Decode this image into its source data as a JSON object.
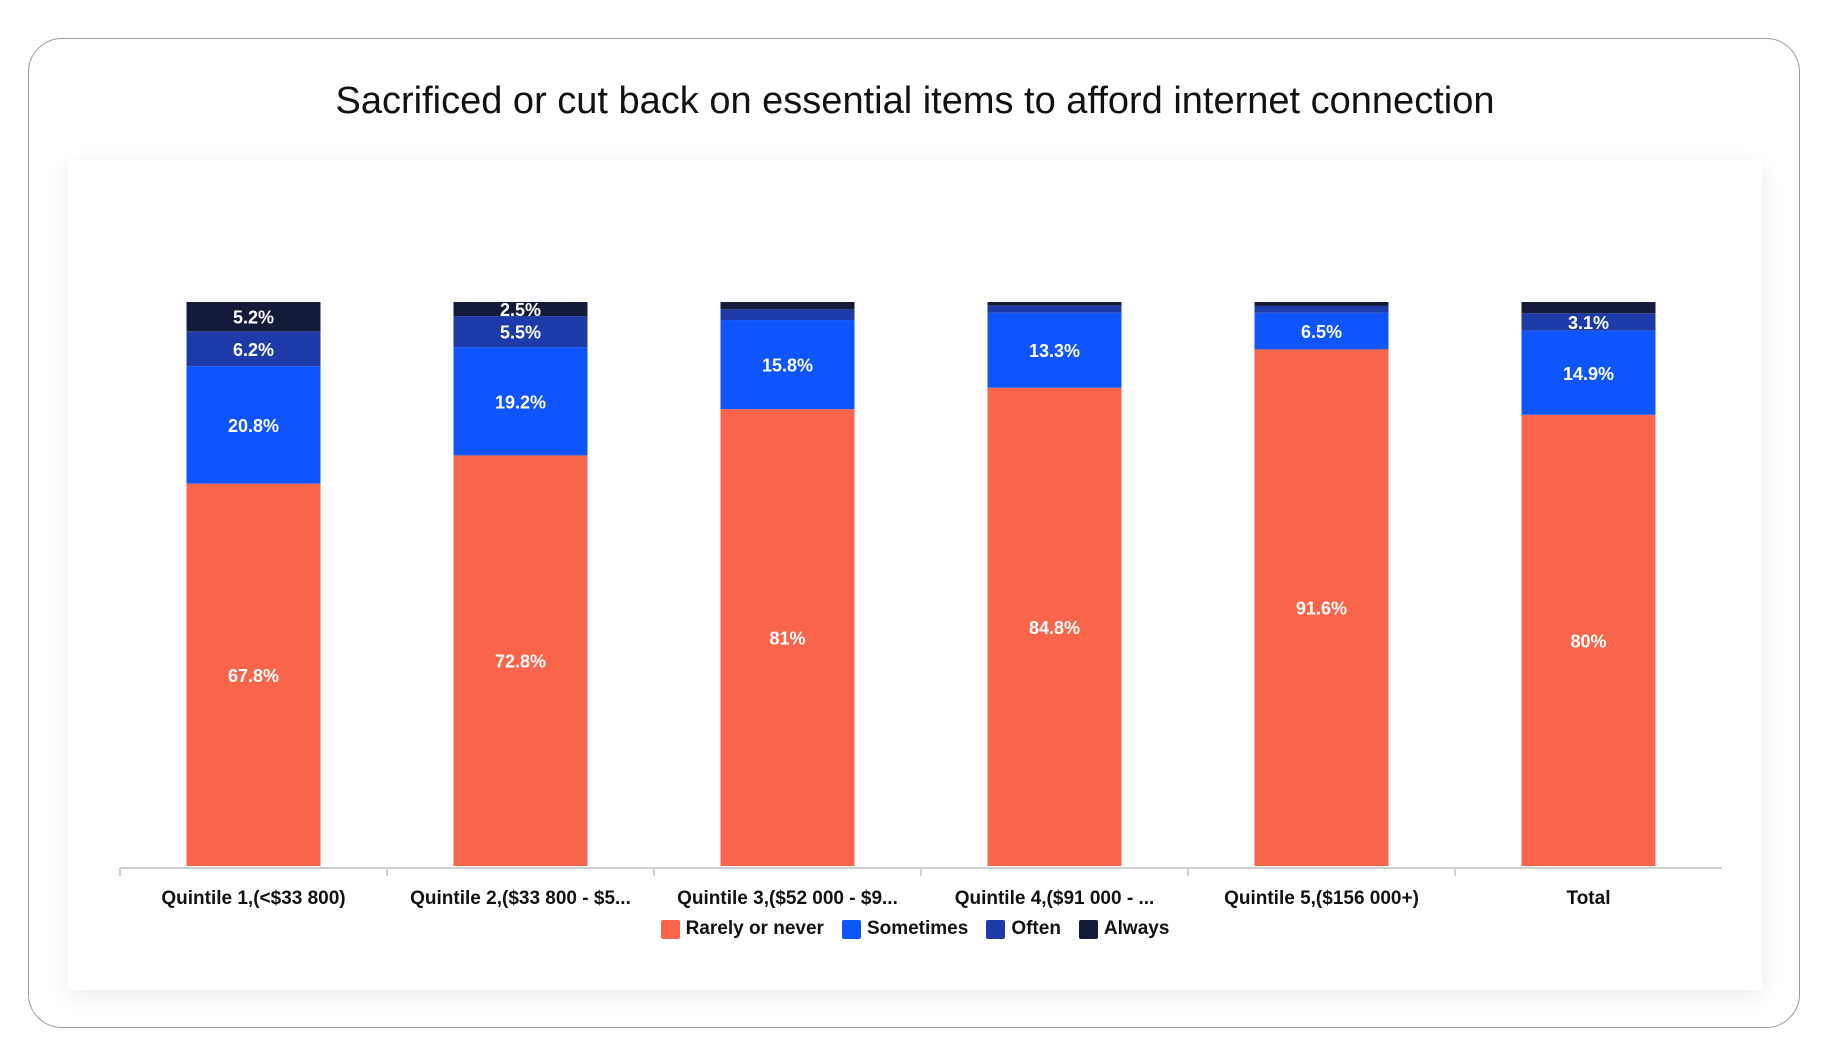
{
  "chart_data": {
    "type": "bar",
    "stacked": true,
    "title": "Sacrificed or cut back on essential items to afford internet connection",
    "categories": [
      "Quintile 1,(<$33 800)",
      "Quintile 2,($33 800 - $5...",
      "Quintile 3,($52 000 - $9...",
      "Quintile 4,($91 000 - ...",
      "Quintile 5,($156 000+)",
      "Total"
    ],
    "series": [
      {
        "name": "Rarely or never",
        "color": "#f9654a",
        "values": [
          67.8,
          72.8,
          81,
          84.8,
          91.6,
          80
        ],
        "labels": [
          "67.8%",
          "72.8%",
          "81%",
          "84.8%",
          "91.6%",
          "80%"
        ]
      },
      {
        "name": "Sometimes",
        "color": "#0e55fe",
        "values": [
          20.8,
          19.2,
          15.8,
          13.3,
          6.5,
          14.9
        ],
        "labels": [
          "20.8%",
          "19.2%",
          "15.8%",
          "13.3%",
          "6.5%",
          "14.9%"
        ]
      },
      {
        "name": "Often",
        "color": "#1d3ba8",
        "values": [
          6.2,
          5.5,
          1.9,
          1.3,
          1.2,
          3.1
        ],
        "labels": [
          "6.2%",
          "5.5%",
          "",
          "",
          "",
          "3.1%"
        ]
      },
      {
        "name": "Always",
        "color": "#141a3a",
        "values": [
          5.2,
          2.5,
          1.3,
          0.6,
          0.7,
          2.0
        ],
        "labels": [
          "5.2%",
          "2.5%",
          "",
          "",
          "",
          ""
        ]
      }
    ],
    "ylim": [
      0,
      100
    ],
    "grid": false,
    "legend_position": "bottom"
  }
}
